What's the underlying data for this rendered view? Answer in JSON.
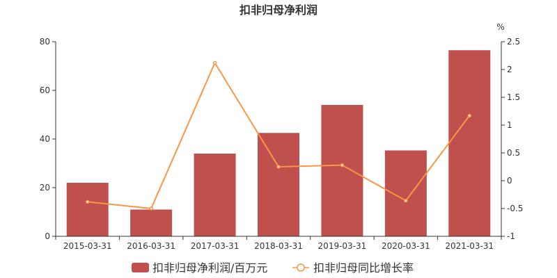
{
  "chart_data": {
    "type": "bar",
    "title": "扣非归母净利润",
    "categories": [
      "2015-03-31",
      "2016-03-31",
      "2017-03-31",
      "2018-03-31",
      "2019-03-31",
      "2020-03-31",
      "2021-03-31"
    ],
    "series": [
      {
        "name": "扣非归母净利润/百万元",
        "type": "bar",
        "axis": "left",
        "color": "#c0504d",
        "values": [
          22,
          11,
          34,
          42.5,
          54,
          35.3,
          76.5
        ]
      },
      {
        "name": "扣非归母同比增长率",
        "type": "line",
        "axis": "right",
        "color": "#f79646",
        "values": [
          -0.38,
          -0.5,
          2.12,
          0.25,
          0.28,
          -0.36,
          1.17
        ]
      }
    ],
    "y_left": {
      "min": 0,
      "max": 80,
      "ticks": [
        0,
        20,
        40,
        60,
        80
      ]
    },
    "y_right": {
      "min": -1,
      "max": 2.5,
      "unit": "%",
      "ticks": [
        -1,
        -0.5,
        0,
        0.5,
        1,
        1.5,
        2,
        2.5
      ],
      "tick_labels": [
        "-1",
        "-0.5",
        "0",
        "0.5",
        "1",
        "1.5",
        "2",
        "2.5"
      ]
    },
    "legend": "bottom-center",
    "grid": false
  }
}
